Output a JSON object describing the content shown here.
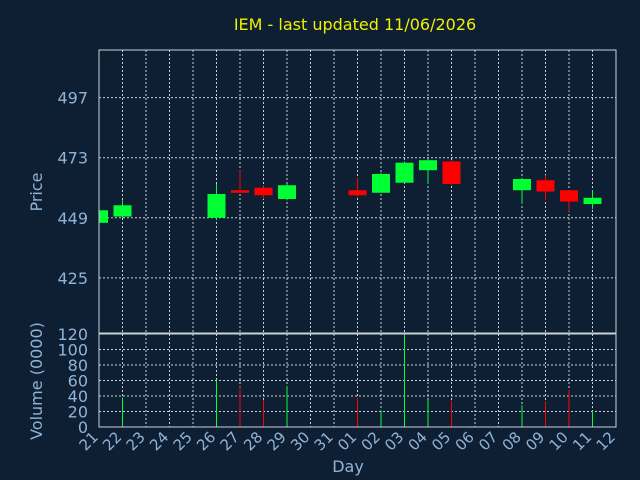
{
  "chart_data": {
    "type": "candlestick",
    "title": "IEM - last updated 11/06/2026",
    "xlabel": "Day",
    "price_panel": {
      "ylabel": "Price",
      "ylim": [
        403,
        516
      ],
      "yticks": [
        425,
        449,
        473,
        497
      ]
    },
    "volume_panel": {
      "ylabel": "Volume (0000)",
      "ylim": [
        0,
        120
      ],
      "yticks": [
        0,
        20,
        40,
        60,
        80,
        100,
        120
      ]
    },
    "x_ticks": [
      "21",
      "22",
      "23",
      "24",
      "25",
      "26",
      "27",
      "28",
      "29",
      "30",
      "31",
      "01",
      "02",
      "03",
      "04",
      "05",
      "06",
      "07",
      "08",
      "09",
      "10",
      "11",
      "12"
    ],
    "up_color": "#00ff33",
    "down_color": "#ff0000",
    "candles": [
      {
        "day": 0,
        "open": 447.0,
        "close": 452.0,
        "high": 452.5,
        "low": 446.5,
        "volume": 0
      },
      {
        "day": 1,
        "open": 449.5,
        "close": 454.0,
        "high": 456.0,
        "low": 449.0,
        "volume": 38
      },
      {
        "day": 5,
        "open": 449.0,
        "close": 458.5,
        "high": 462.5,
        "low": 448.0,
        "volume": 60
      },
      {
        "day": 6,
        "open": 460.0,
        "close": 459.0,
        "high": 468.0,
        "low": 459.0,
        "volume": 52
      },
      {
        "day": 7,
        "open": 461.0,
        "close": 458.0,
        "high": 461.5,
        "low": 456.5,
        "volume": 35
      },
      {
        "day": 8,
        "open": 456.5,
        "close": 462.0,
        "high": 462.5,
        "low": 456.0,
        "volume": 53
      },
      {
        "day": 11,
        "open": 460.0,
        "close": 458.0,
        "high": 465.0,
        "low": 457.5,
        "volume": 38
      },
      {
        "day": 12,
        "open": 459.0,
        "close": 466.5,
        "high": 467.0,
        "low": 459.0,
        "volume": 22
      },
      {
        "day": 13,
        "open": 463.0,
        "close": 471.0,
        "high": 471.5,
        "low": 463.0,
        "volume": 120
      },
      {
        "day": 14,
        "open": 468.0,
        "close": 472.0,
        "high": 472.5,
        "low": 462.5,
        "volume": 35
      },
      {
        "day": 15,
        "open": 471.5,
        "close": 462.5,
        "high": 472.0,
        "low": 462.0,
        "volume": 34
      },
      {
        "day": 18,
        "open": 460.0,
        "close": 464.5,
        "high": 465.0,
        "low": 454.5,
        "volume": 28
      },
      {
        "day": 19,
        "open": 464.0,
        "close": 459.5,
        "high": 466.0,
        "low": 456.0,
        "volume": 33
      },
      {
        "day": 20,
        "open": 460.0,
        "close": 455.5,
        "high": 460.0,
        "low": 451.5,
        "volume": 48
      },
      {
        "day": 21,
        "open": 454.5,
        "close": 457.0,
        "high": 460.0,
        "low": 452.5,
        "volume": 21
      }
    ]
  }
}
